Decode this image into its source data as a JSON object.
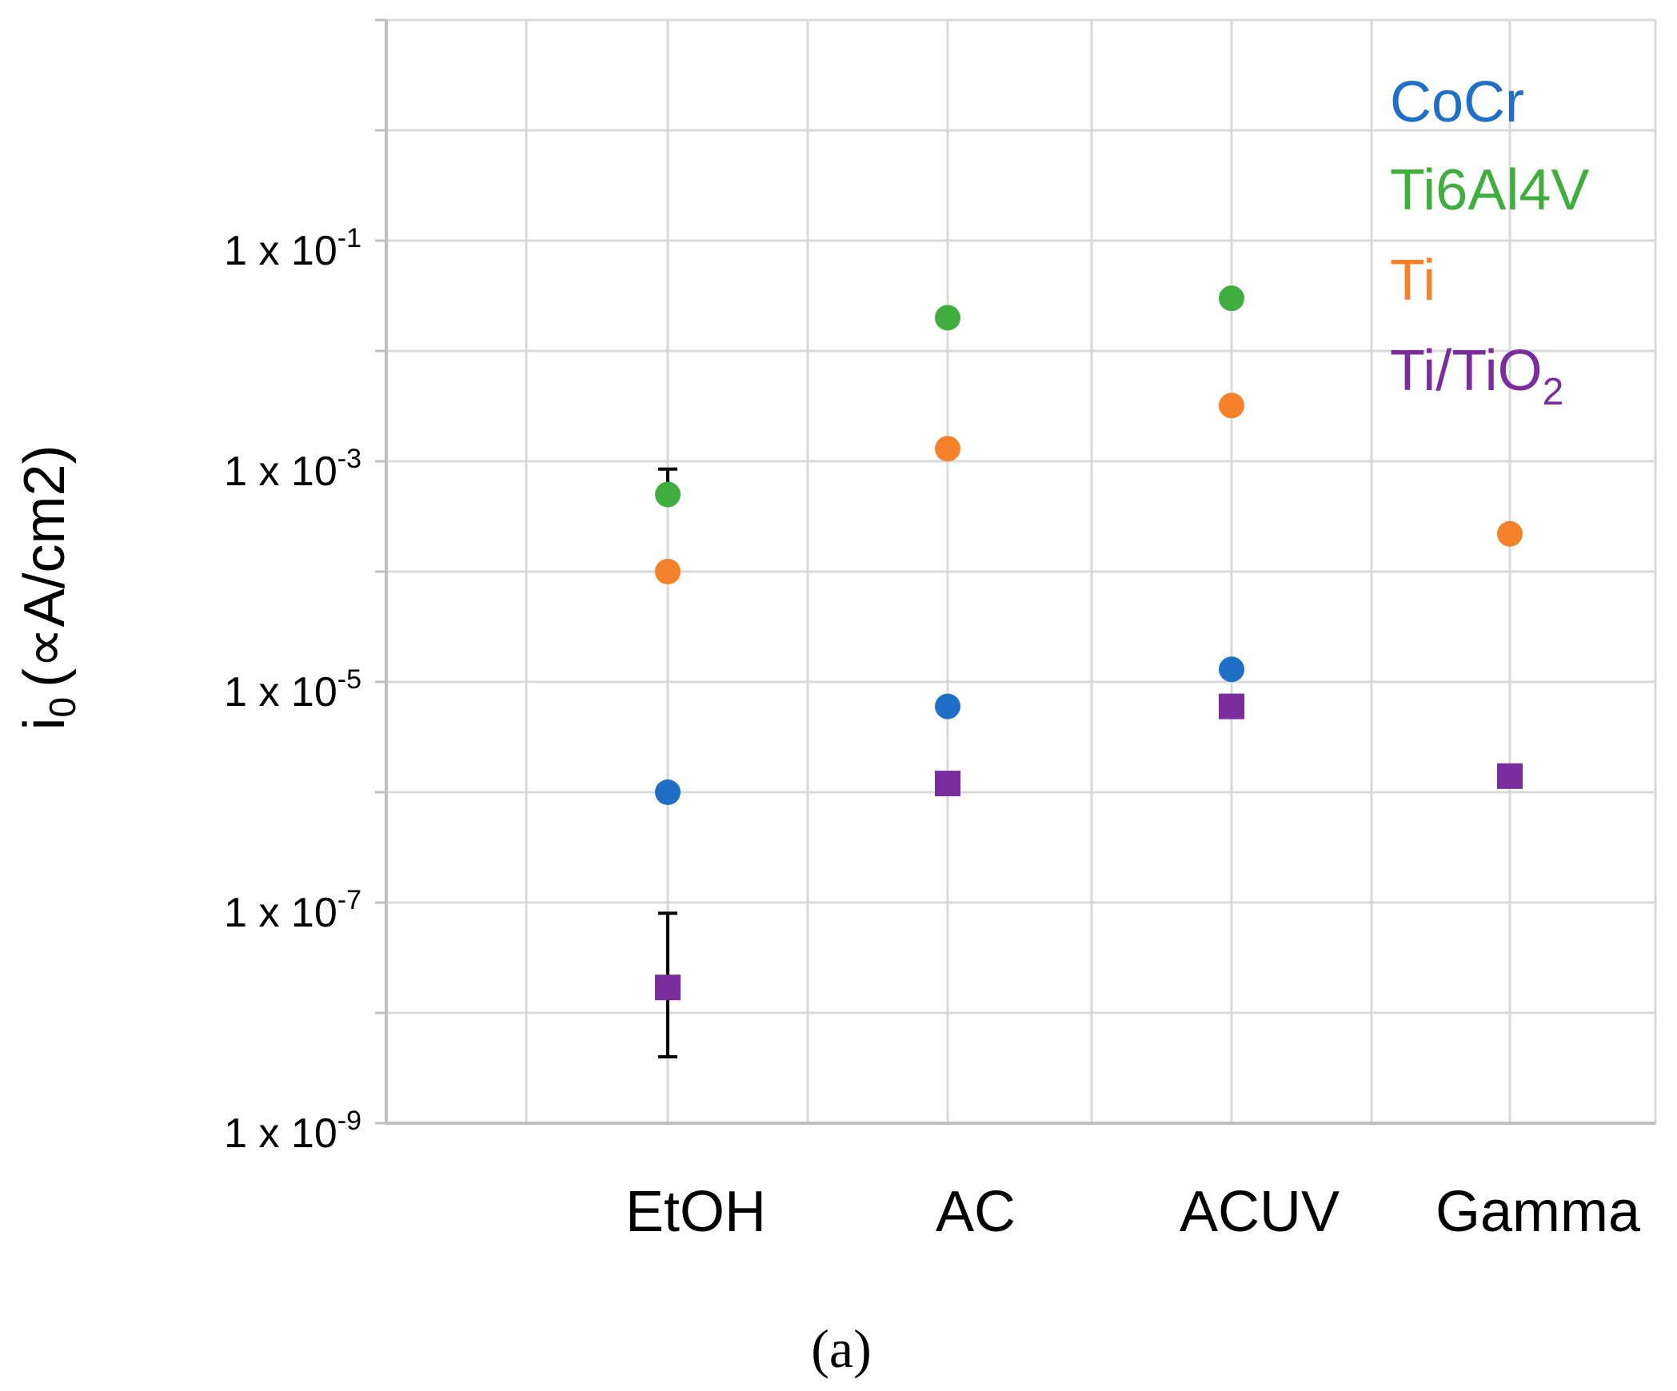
{
  "chart_data": {
    "type": "scatter",
    "scale": "log10",
    "ylim": [
      1e-09,
      10
    ],
    "ylabel": "i",
    "ylabel_sub": "0",
    "ylabel_unit": "(∝A/cm2)",
    "ytick_values": [
      1e-09,
      1e-07,
      1e-05,
      0.001,
      0.1
    ],
    "ytick_bases": [
      "1 x 10",
      "1 x 10",
      "1 x 10",
      "1 x 10",
      "1 x 10"
    ],
    "ytick_exps": [
      "-9",
      "-7",
      "-5",
      "-3",
      "-1"
    ],
    "categories": [
      "EtOH",
      "AC",
      "ACUV",
      "Gamma"
    ],
    "grid": true,
    "series": [
      {
        "name": "CoCr",
        "color": "#1f6fc7",
        "marker": "circle",
        "values": [
          1e-06,
          6e-06,
          1.3e-05,
          null
        ]
      },
      {
        "name": "Ti6Al4V",
        "color": "#3fae3f",
        "marker": "circle",
        "values": [
          0.0005,
          0.02,
          0.03,
          null
        ]
      },
      {
        "name": "Ti",
        "color": "#f5822a",
        "marker": "circle",
        "values": [
          0.0001,
          0.0013,
          0.0032,
          0.00022
        ]
      },
      {
        "name": "Ti/TiO",
        "name_sub": "2",
        "color": "#7b2d9e",
        "marker": "square",
        "values": [
          1.7e-08,
          1.2e-06,
          6e-06,
          1.4e-06
        ]
      }
    ],
    "error_bars": [
      {
        "series": "Ti6Al4V",
        "category": "EtOH",
        "low": 0.0005,
        "high": 0.00085
      },
      {
        "series": "Ti/TiO",
        "category": "EtOH",
        "low": 4e-09,
        "high": 8e-08
      }
    ],
    "legend_position": "top-right",
    "caption": "(a)",
    "caption_letter": "a"
  }
}
